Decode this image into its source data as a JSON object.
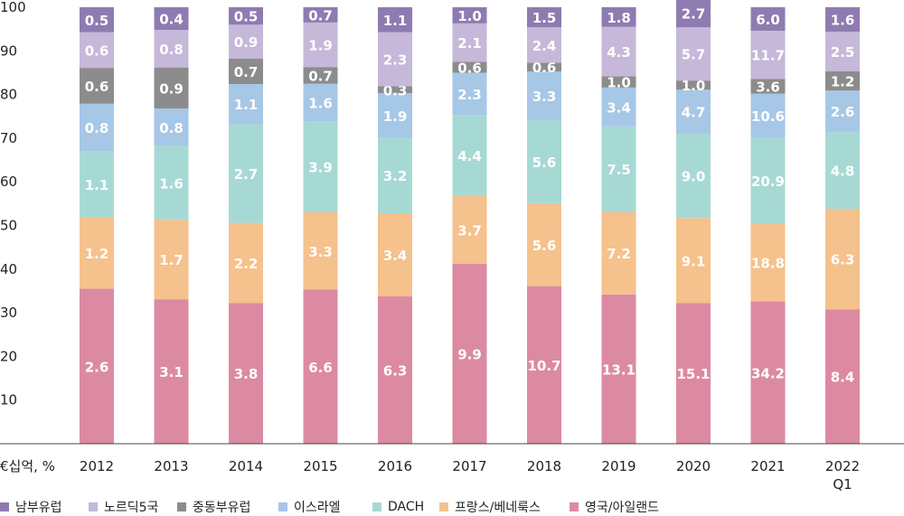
{
  "chart_data": {
    "type": "bar",
    "stacked": true,
    "unit_label": "€십억, %",
    "categories": [
      "2012",
      "2013",
      "2014",
      "2015",
      "2016",
      "2017",
      "2018",
      "2019",
      "2020",
      "2021",
      "2022\nQ1"
    ],
    "y_ticks": [
      10,
      20,
      30,
      40,
      50,
      60,
      70,
      80,
      90,
      100
    ],
    "ylim": [
      0,
      100
    ],
    "grid": false,
    "legend_position": "bottom",
    "series": [
      {
        "name": "영국/아일랜드",
        "color": "#dc8aa2",
        "shares": [
          35.5,
          33.1,
          32.2,
          35.3,
          33.8,
          41.2,
          36.1,
          34.2,
          32.2,
          32.6,
          30.8
        ],
        "labels": [
          "2.6",
          "3.1",
          "3.8",
          "6.6",
          "6.3",
          "9.9",
          "10.7",
          "13.1",
          "15.1",
          "34.2",
          "8.4"
        ]
      },
      {
        "name": "프랑스/베네룩스",
        "color": "#f5c18c",
        "shares": [
          16.4,
          18.2,
          18.4,
          17.7,
          19.0,
          15.6,
          19.0,
          18.9,
          19.5,
          17.8,
          23.0
        ],
        "labels": [
          "1.2",
          "1.7",
          "2.2",
          "3.3",
          "3.4",
          "3.7",
          "5.6",
          "7.2",
          "9.1",
          "18.8",
          "6.3"
        ]
      },
      {
        "name": "DACH",
        "color": "#a7d9d4",
        "shares": [
          15.1,
          16.9,
          22.6,
          20.9,
          17.3,
          18.5,
          19.0,
          19.6,
          19.3,
          19.8,
          17.6
        ],
        "labels": [
          "1.1",
          "1.6",
          "2.7",
          "3.9",
          "3.2",
          "4.4",
          "5.6",
          "7.5",
          "9.0",
          "20.9",
          "4.8"
        ]
      },
      {
        "name": "이스라엘",
        "color": "#a7c7e6",
        "shares": [
          10.9,
          8.6,
          9.2,
          8.6,
          10.2,
          9.7,
          11.2,
          8.9,
          10.1,
          10.0,
          9.5
        ],
        "labels": [
          "0.8",
          "0.8",
          "1.1",
          "1.6",
          "1.9",
          "2.3",
          "3.3",
          "3.4",
          "4.7",
          "10.6",
          "2.6"
        ]
      },
      {
        "name": "중동부유럽",
        "color": "#8c8c8c",
        "shares": [
          8.2,
          9.4,
          5.8,
          3.8,
          1.6,
          2.5,
          2.0,
          2.6,
          2.1,
          3.4,
          4.4
        ],
        "labels": [
          "0.6",
          "0.9",
          "0.7",
          "0.7",
          "0.3",
          "0.6",
          "0.6",
          "1.0",
          "1.0",
          "3.6",
          "1.2"
        ]
      },
      {
        "name": "노르딕5국",
        "color": "#c5b8d9",
        "shares": [
          8.2,
          8.6,
          7.8,
          10.2,
          12.4,
          8.8,
          8.1,
          11.3,
          12.2,
          11.0,
          9.1
        ],
        "labels": [
          "0.6",
          "0.8",
          "0.9",
          "1.9",
          "2.3",
          "2.1",
          "2.4",
          "4.3",
          "5.7",
          "11.7",
          "2.5"
        ]
      },
      {
        "name": "남부유럽",
        "color": "#8e7bb0",
        "shares": [
          5.7,
          5.2,
          4.0,
          3.5,
          5.7,
          3.7,
          4.6,
          4.5,
          6.6,
          5.4,
          5.6
        ],
        "labels": [
          "0.5",
          "0.4",
          "0.5",
          "0.7",
          "1.1",
          "1.0",
          "1.5",
          "1.8",
          "2.7",
          "6.0",
          "1.6"
        ]
      }
    ],
    "legend_order": [
      "남부유럽",
      "노르딕5국",
      "중동부유럽",
      "이스라엘",
      "DACH",
      "프랑스/베네룩스",
      "영국/아일랜드"
    ]
  }
}
